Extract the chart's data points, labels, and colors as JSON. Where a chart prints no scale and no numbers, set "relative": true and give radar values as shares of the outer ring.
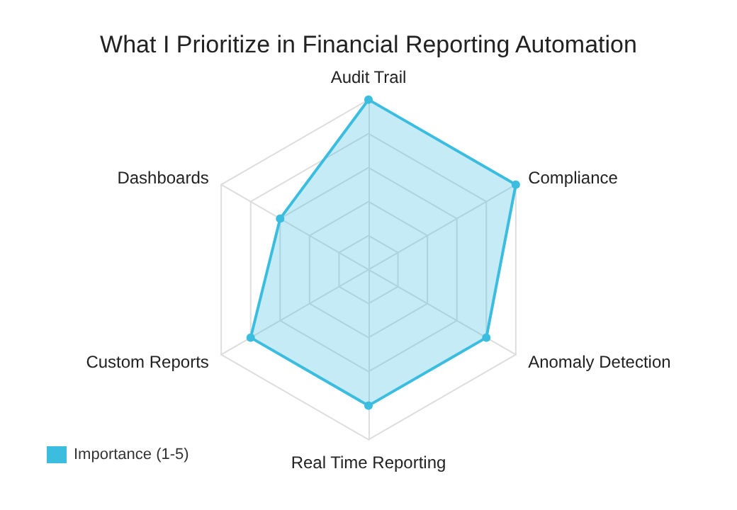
{
  "chart_data": {
    "type": "radar",
    "title": "What I Prioritize in Financial Reporting Automation",
    "categories": [
      "Audit Trail",
      "Compliance",
      "Anomaly Detection",
      "Real Time Reporting",
      "Custom Reports",
      "Dashboards"
    ],
    "relative": true,
    "legend": "bottom left",
    "marker": "circle",
    "series": [
      {
        "name": "Importance (1-5)",
        "color": "#3bbde0",
        "values": [
          1,
          1,
          0.8,
          0.8,
          0.8,
          0.6
        ]
      }
    ]
  }
}
